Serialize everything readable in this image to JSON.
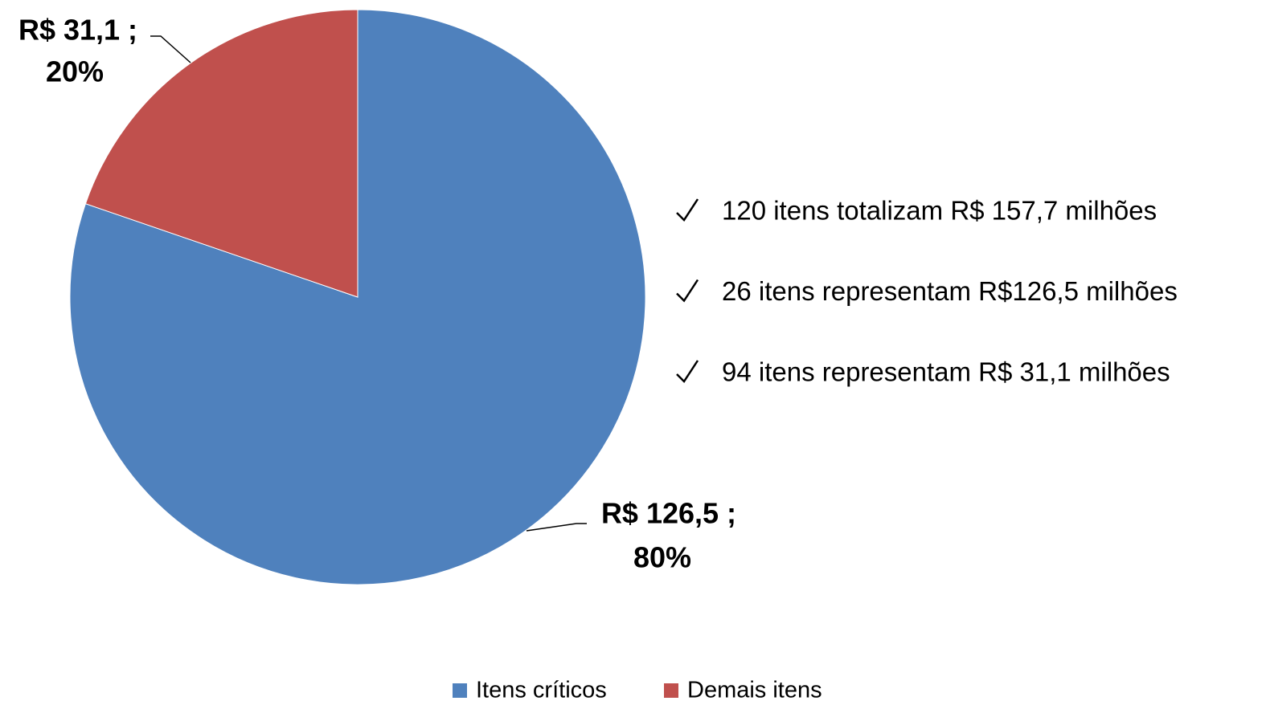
{
  "chart_data": {
    "type": "pie",
    "categories": [
      "Itens críticos",
      "Demais itens"
    ],
    "values": [
      126.5,
      31.1
    ],
    "value_labels": [
      [
        "R$ 126,5 ;",
        "80%"
      ],
      [
        "R$ 31,1 ;",
        "20%"
      ]
    ],
    "colors": [
      "#4f81bd",
      "#c0504d"
    ],
    "legend": "bottom",
    "annotations": [
      "120 itens totalizam R$ 157,7 milhões",
      "26 itens representam R$126,5 milhões",
      "94 itens representam R$ 31,1 milhões"
    ]
  }
}
